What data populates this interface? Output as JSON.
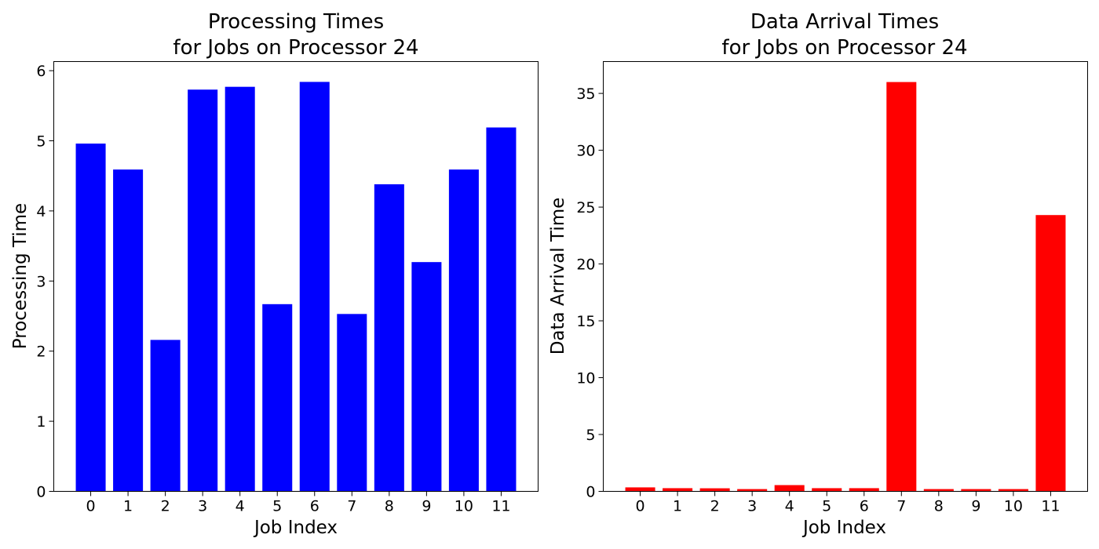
{
  "chart_data": [
    {
      "type": "bar",
      "title": [
        "Processing Times",
        "for Jobs on Processor 24"
      ],
      "xlabel": "Job Index",
      "ylabel": "Processing Time",
      "categories": [
        "0",
        "1",
        "2",
        "3",
        "4",
        "5",
        "6",
        "7",
        "8",
        "9",
        "10",
        "11"
      ],
      "values": [
        4.96,
        4.59,
        2.16,
        5.73,
        5.77,
        2.67,
        5.84,
        2.53,
        4.38,
        3.27,
        4.59,
        5.19
      ],
      "ylim": [
        0,
        6.13
      ],
      "yticks": [
        0,
        1,
        2,
        3,
        4,
        5,
        6
      ],
      "color": "#0000ff",
      "grid": false
    },
    {
      "type": "bar",
      "title": [
        "Data Arrival Times",
        "for Jobs on Processor 24"
      ],
      "xlabel": "Job Index",
      "ylabel": "Data Arrival Time",
      "categories": [
        "0",
        "1",
        "2",
        "3",
        "4",
        "5",
        "6",
        "7",
        "8",
        "9",
        "10",
        "11"
      ],
      "values": [
        0.35,
        0.28,
        0.27,
        0.2,
        0.55,
        0.28,
        0.28,
        36.0,
        0.2,
        0.2,
        0.2,
        24.3
      ],
      "ylim": [
        0,
        37.8
      ],
      "yticks": [
        0,
        5,
        10,
        15,
        20,
        25,
        30,
        35
      ],
      "color": "#ff0000",
      "grid": false
    }
  ]
}
